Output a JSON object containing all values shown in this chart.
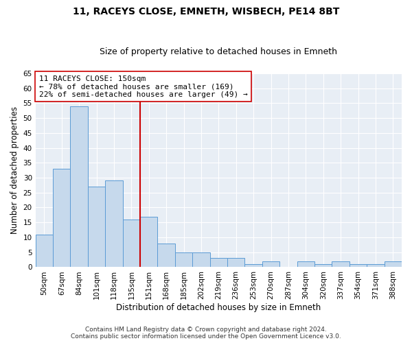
{
  "title": "11, RACEYS CLOSE, EMNETH, WISBECH, PE14 8BT",
  "subtitle": "Size of property relative to detached houses in Emneth",
  "xlabel": "Distribution of detached houses by size in Emneth",
  "ylabel": "Number of detached properties",
  "categories": [
    "50sqm",
    "67sqm",
    "84sqm",
    "101sqm",
    "118sqm",
    "135sqm",
    "151sqm",
    "168sqm",
    "185sqm",
    "202sqm",
    "219sqm",
    "236sqm",
    "253sqm",
    "270sqm",
    "287sqm",
    "304sqm",
    "320sqm",
    "337sqm",
    "354sqm",
    "371sqm",
    "388sqm"
  ],
  "values": [
    11,
    33,
    54,
    27,
    29,
    16,
    17,
    8,
    5,
    5,
    3,
    3,
    1,
    2,
    0,
    2,
    1,
    2,
    1,
    1,
    2
  ],
  "bar_color": "#c6d9ec",
  "bar_edge_color": "#5b9bd5",
  "vline_index": 6,
  "vline_color": "#cc0000",
  "annotation_text": "11 RACEYS CLOSE: 150sqm\n← 78% of detached houses are smaller (169)\n22% of semi-detached houses are larger (49) →",
  "annotation_box_color": "white",
  "annotation_box_edge_color": "#cc0000",
  "ylim": [
    0,
    65
  ],
  "yticks": [
    0,
    5,
    10,
    15,
    20,
    25,
    30,
    35,
    40,
    45,
    50,
    55,
    60,
    65
  ],
  "background_color": "#e8eef5",
  "footer_line1": "Contains HM Land Registry data © Crown copyright and database right 2024.",
  "footer_line2": "Contains public sector information licensed under the Open Government Licence v3.0.",
  "title_fontsize": 10,
  "subtitle_fontsize": 9,
  "xlabel_fontsize": 8.5,
  "ylabel_fontsize": 8.5,
  "tick_fontsize": 7.5,
  "annot_fontsize": 8,
  "footer_fontsize": 6.5
}
